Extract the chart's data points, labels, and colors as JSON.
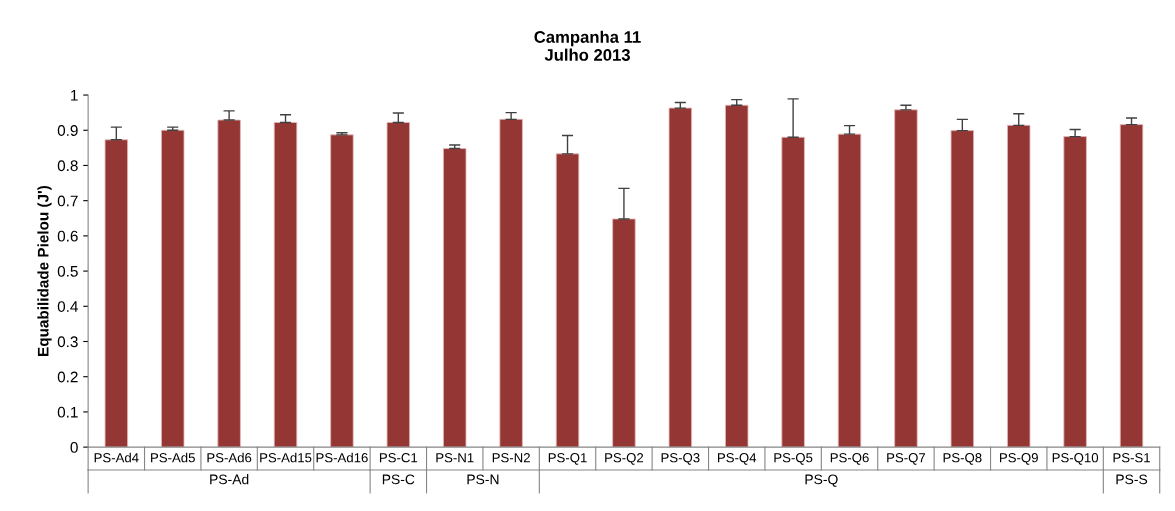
{
  "chart_data": {
    "type": "bar",
    "title": "Campanha 11\nJulho 2013",
    "ylabel": "Equabilidade Pielou (J')",
    "categories": [
      "PS-Ad4",
      "PS-Ad5",
      "PS-Ad6",
      "PS-Ad15",
      "PS-Ad16",
      "PS-C1",
      "PS-N1",
      "PS-N2",
      "PS-Q1",
      "PS-Q2",
      "PS-Q3",
      "PS-Q4",
      "PS-Q5",
      "PS-Q6",
      "PS-Q7",
      "PS-Q8",
      "PS-Q9",
      "PS-Q10",
      "PS-S1"
    ],
    "values": [
      0.873,
      0.9,
      0.929,
      0.922,
      0.887,
      0.922,
      0.848,
      0.931,
      0.833,
      0.648,
      0.963,
      0.971,
      0.88,
      0.889,
      0.958,
      0.899,
      0.914,
      0.882,
      0.916
    ],
    "errors": [
      [
        0.873,
        0.909
      ],
      [
        0.9,
        0.909
      ],
      [
        0.929,
        0.955
      ],
      [
        0.922,
        0.944
      ],
      [
        0.887,
        0.893
      ],
      [
        0.922,
        0.949
      ],
      [
        0.848,
        0.858
      ],
      [
        0.931,
        0.95
      ],
      [
        0.833,
        0.885
      ],
      [
        0.648,
        0.735
      ],
      [
        0.963,
        0.979
      ],
      [
        0.971,
        0.987
      ],
      [
        0.88,
        0.989
      ],
      [
        0.889,
        0.913
      ],
      [
        0.958,
        0.971
      ],
      [
        0.899,
        0.931
      ],
      [
        0.914,
        0.947
      ],
      [
        0.882,
        0.902
      ],
      [
        0.916,
        0.935
      ]
    ],
    "color": "#943634",
    "ylim": [
      0,
      1
    ],
    "yticks": [
      0,
      0.1,
      0.2,
      0.3,
      0.4,
      0.5,
      0.6,
      0.7,
      0.8,
      0.9,
      1
    ],
    "grid": false,
    "legend": false,
    "annotations": [
      "PS-Ad",
      "PS-C",
      "PS-N",
      "PS-Q",
      "PS-S"
    ]
  }
}
